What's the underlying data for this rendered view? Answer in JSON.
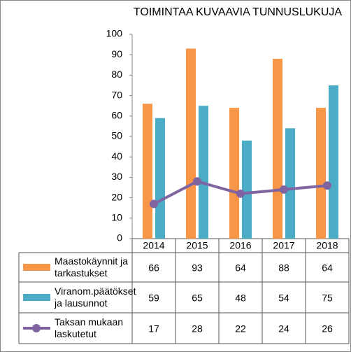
{
  "chart_data": {
    "type": "bar",
    "title": "TOIMINTAA KUVAAVIA TUNNUSLUKUJA",
    "categories": [
      "2014",
      "2015",
      "2016",
      "2017",
      "2018"
    ],
    "series": [
      {
        "name": "Maastokäynnit ja tarkastukset",
        "color": "#f79646",
        "mark": "bar",
        "values": [
          66,
          93,
          64,
          88,
          64
        ]
      },
      {
        "name": "Viranom.päätökset ja lausunnot",
        "color": "#4bacc6",
        "mark": "bar",
        "values": [
          59,
          65,
          48,
          54,
          75
        ]
      },
      {
        "name": "Taksan mukaan laskutetut",
        "color": "#8064a2",
        "mark": "line",
        "values": [
          17,
          28,
          22,
          24,
          26
        ]
      }
    ],
    "ylim": [
      0,
      100
    ],
    "yticks": [
      0,
      10,
      20,
      30,
      40,
      50,
      60,
      70,
      80,
      90,
      100
    ],
    "grid": false
  }
}
